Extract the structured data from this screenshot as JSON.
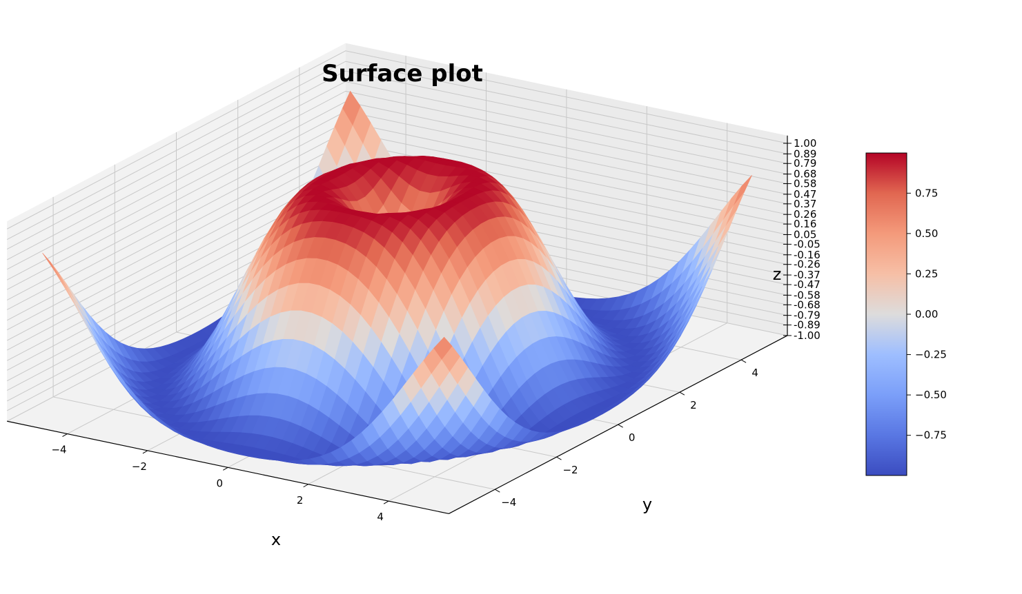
{
  "chart_data": {
    "type": "surface",
    "title": "Surface plot",
    "function": "z = sin(sqrt(x^2 + y^2))",
    "colormap": "coolwarm",
    "x": {
      "label": "x",
      "range": [
        -5,
        5
      ],
      "ticks": [
        "−4",
        "−2",
        "0",
        "2",
        "4"
      ],
      "tick_values": [
        -4,
        -2,
        0,
        2,
        4
      ],
      "samples": 40
    },
    "y": {
      "label": "y",
      "range": [
        -5,
        5
      ],
      "ticks": [
        "−4",
        "−2",
        "0",
        "2",
        "4"
      ],
      "tick_values": [
        -4,
        -2,
        0,
        2,
        4
      ],
      "samples": 40
    },
    "z": {
      "label": "z",
      "range": [
        -1.0,
        1.0
      ],
      "ticks": [
        "1.00",
        "0.89",
        "0.79",
        "0.68",
        "0.58",
        "0.47",
        "0.37",
        "0.26",
        "0.16",
        "0.05",
        "-0.05",
        "-0.16",
        "-0.26",
        "-0.37",
        "-0.47",
        "-0.58",
        "-0.68",
        "-0.79",
        "-0.89",
        "-1.00"
      ],
      "tick_values": [
        1.0,
        0.89,
        0.79,
        0.68,
        0.58,
        0.47,
        0.37,
        0.26,
        0.16,
        0.05,
        -0.05,
        -0.16,
        -0.26,
        -0.37,
        -0.47,
        -0.58,
        -0.68,
        -0.79,
        -0.89,
        -1.0
      ]
    },
    "colorbar": {
      "range": [
        -0.999,
        0.999
      ],
      "ticks": [
        "0.75",
        "0.50",
        "0.25",
        "0.00",
        "−0.25",
        "−0.50",
        "−0.75"
      ],
      "tick_values": [
        0.75,
        0.5,
        0.25,
        0.0,
        -0.25,
        -0.5,
        -0.75
      ]
    },
    "grid": true
  }
}
